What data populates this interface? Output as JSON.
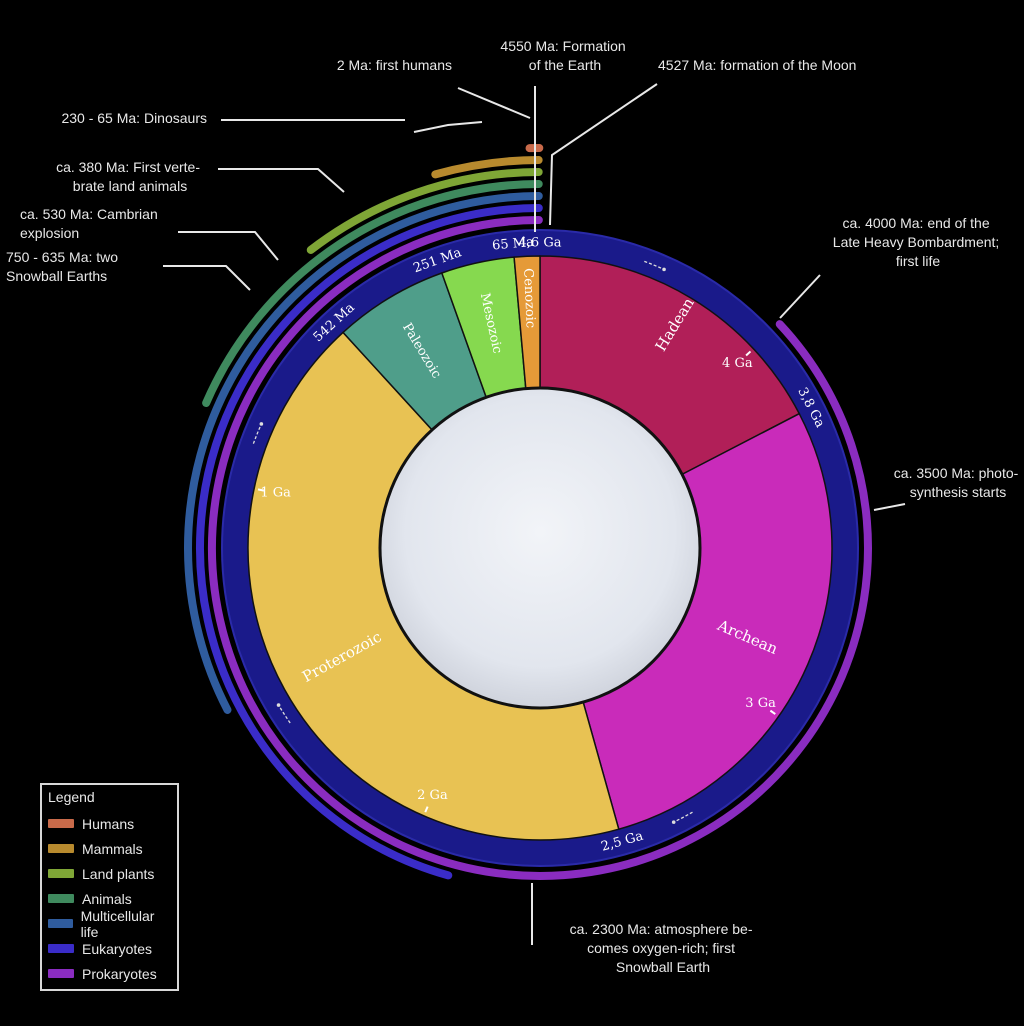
{
  "annotations": {
    "earth": [
      "4550 Ma: Formation",
      "of the Earth"
    ],
    "moon": [
      "4527 Ma: formation of the Moon"
    ],
    "humans": [
      "2 Ma: first humans"
    ],
    "dinosaurs": [
      "230 - 65 Ma: Dinosaurs"
    ],
    "vertebrates": [
      "ca. 380 Ma: First verte-",
      "brate land animals"
    ],
    "cambrian": [
      "ca. 530 Ma: Cambrian",
      "explosion"
    ],
    "snowball": [
      "750 - 635 Ma: two",
      "Snowball Earths"
    ],
    "lhb": [
      "ca. 4000 Ma: end of the",
      "Late Heavy Bombardment;",
      "first life"
    ],
    "photo": [
      "ca. 3500 Ma: photo-",
      "synthesis starts"
    ],
    "oxygen": [
      "ca. 2300 Ma: atmosphere be-",
      "comes oxygen-rich; first",
      "Snowball Earth"
    ]
  },
  "eons": [
    {
      "name": "Hadean",
      "start": 4.6,
      "end": 3.8,
      "color": "#b11f58"
    },
    {
      "name": "Archean",
      "start": 3.8,
      "end": 2.5,
      "color": "#c92bba"
    },
    {
      "name": "Proterozoic",
      "start": 2.5,
      "end": 0.542,
      "color": "#e8c253"
    }
  ],
  "eras": [
    {
      "name": "Paleozoic",
      "start": 0.542,
      "end": 0.251,
      "color": "#4f9e8a"
    },
    {
      "name": "Mesozoic",
      "start": 0.251,
      "end": 0.065,
      "color": "#86d94f"
    },
    {
      "name": "Cenozoic",
      "start": 0.065,
      "end": 0.0,
      "color": "#e59a38"
    }
  ],
  "ticks": [
    {
      "label": "4,6 Ga",
      "value": 4.6
    },
    {
      "label": "4 Ga",
      "value": 4.0
    },
    {
      "label": "3,8 Ga",
      "value": 3.8
    },
    {
      "label": "3 Ga",
      "value": 3.0
    },
    {
      "label": "2,5 Ga",
      "value": 2.5
    },
    {
      "label": "2 Ga",
      "value": 2.0
    },
    {
      "label": "1 Ga",
      "value": 1.0
    },
    {
      "label": "542 Ma",
      "value": 0.542
    },
    {
      "label": "251 Ma",
      "value": 0.251
    },
    {
      "label": "65 Ma",
      "value": 0.065
    }
  ],
  "life_arcs": [
    {
      "name": "Prokaryotes",
      "start": 4.0,
      "end": 0,
      "color": "#8a2cc0"
    },
    {
      "name": "Eukaryotes",
      "start": 2.1,
      "end": 0,
      "color": "#3a2cc8"
    },
    {
      "name": "Multicellular life",
      "start": 1.5,
      "end": 0,
      "color": "#2f5c9e"
    },
    {
      "name": "Animals",
      "start": 0.85,
      "end": 0,
      "color": "#3f8a5e"
    },
    {
      "name": "Land plants",
      "start": 0.48,
      "end": 0,
      "color": "#7fa636"
    },
    {
      "name": "Mammals",
      "start": 0.2,
      "end": 0,
      "color": "#b88a2e"
    },
    {
      "name": "Humans",
      "start": 0.002,
      "end": 0,
      "color": "#c86a4a"
    }
  ],
  "legend": {
    "title": "Legend",
    "items": [
      {
        "label": "Humans",
        "color": "#c86a4a"
      },
      {
        "label": "Mammals",
        "color": "#b88a2e"
      },
      {
        "label": "Land plants",
        "color": "#7fa636"
      },
      {
        "label": "Animals",
        "color": "#3f8a5e"
      },
      {
        "label": "Multicellular life",
        "color": "#2f5c9e"
      },
      {
        "label": "Eukaryotes",
        "color": "#3a2cc8"
      },
      {
        "label": "Prokaryotes",
        "color": "#8a2cc0"
      }
    ]
  },
  "colors": {
    "eon_band": "#1a1a8a",
    "band_edge": "#2a2aa8",
    "center": "#e6eaf0"
  }
}
